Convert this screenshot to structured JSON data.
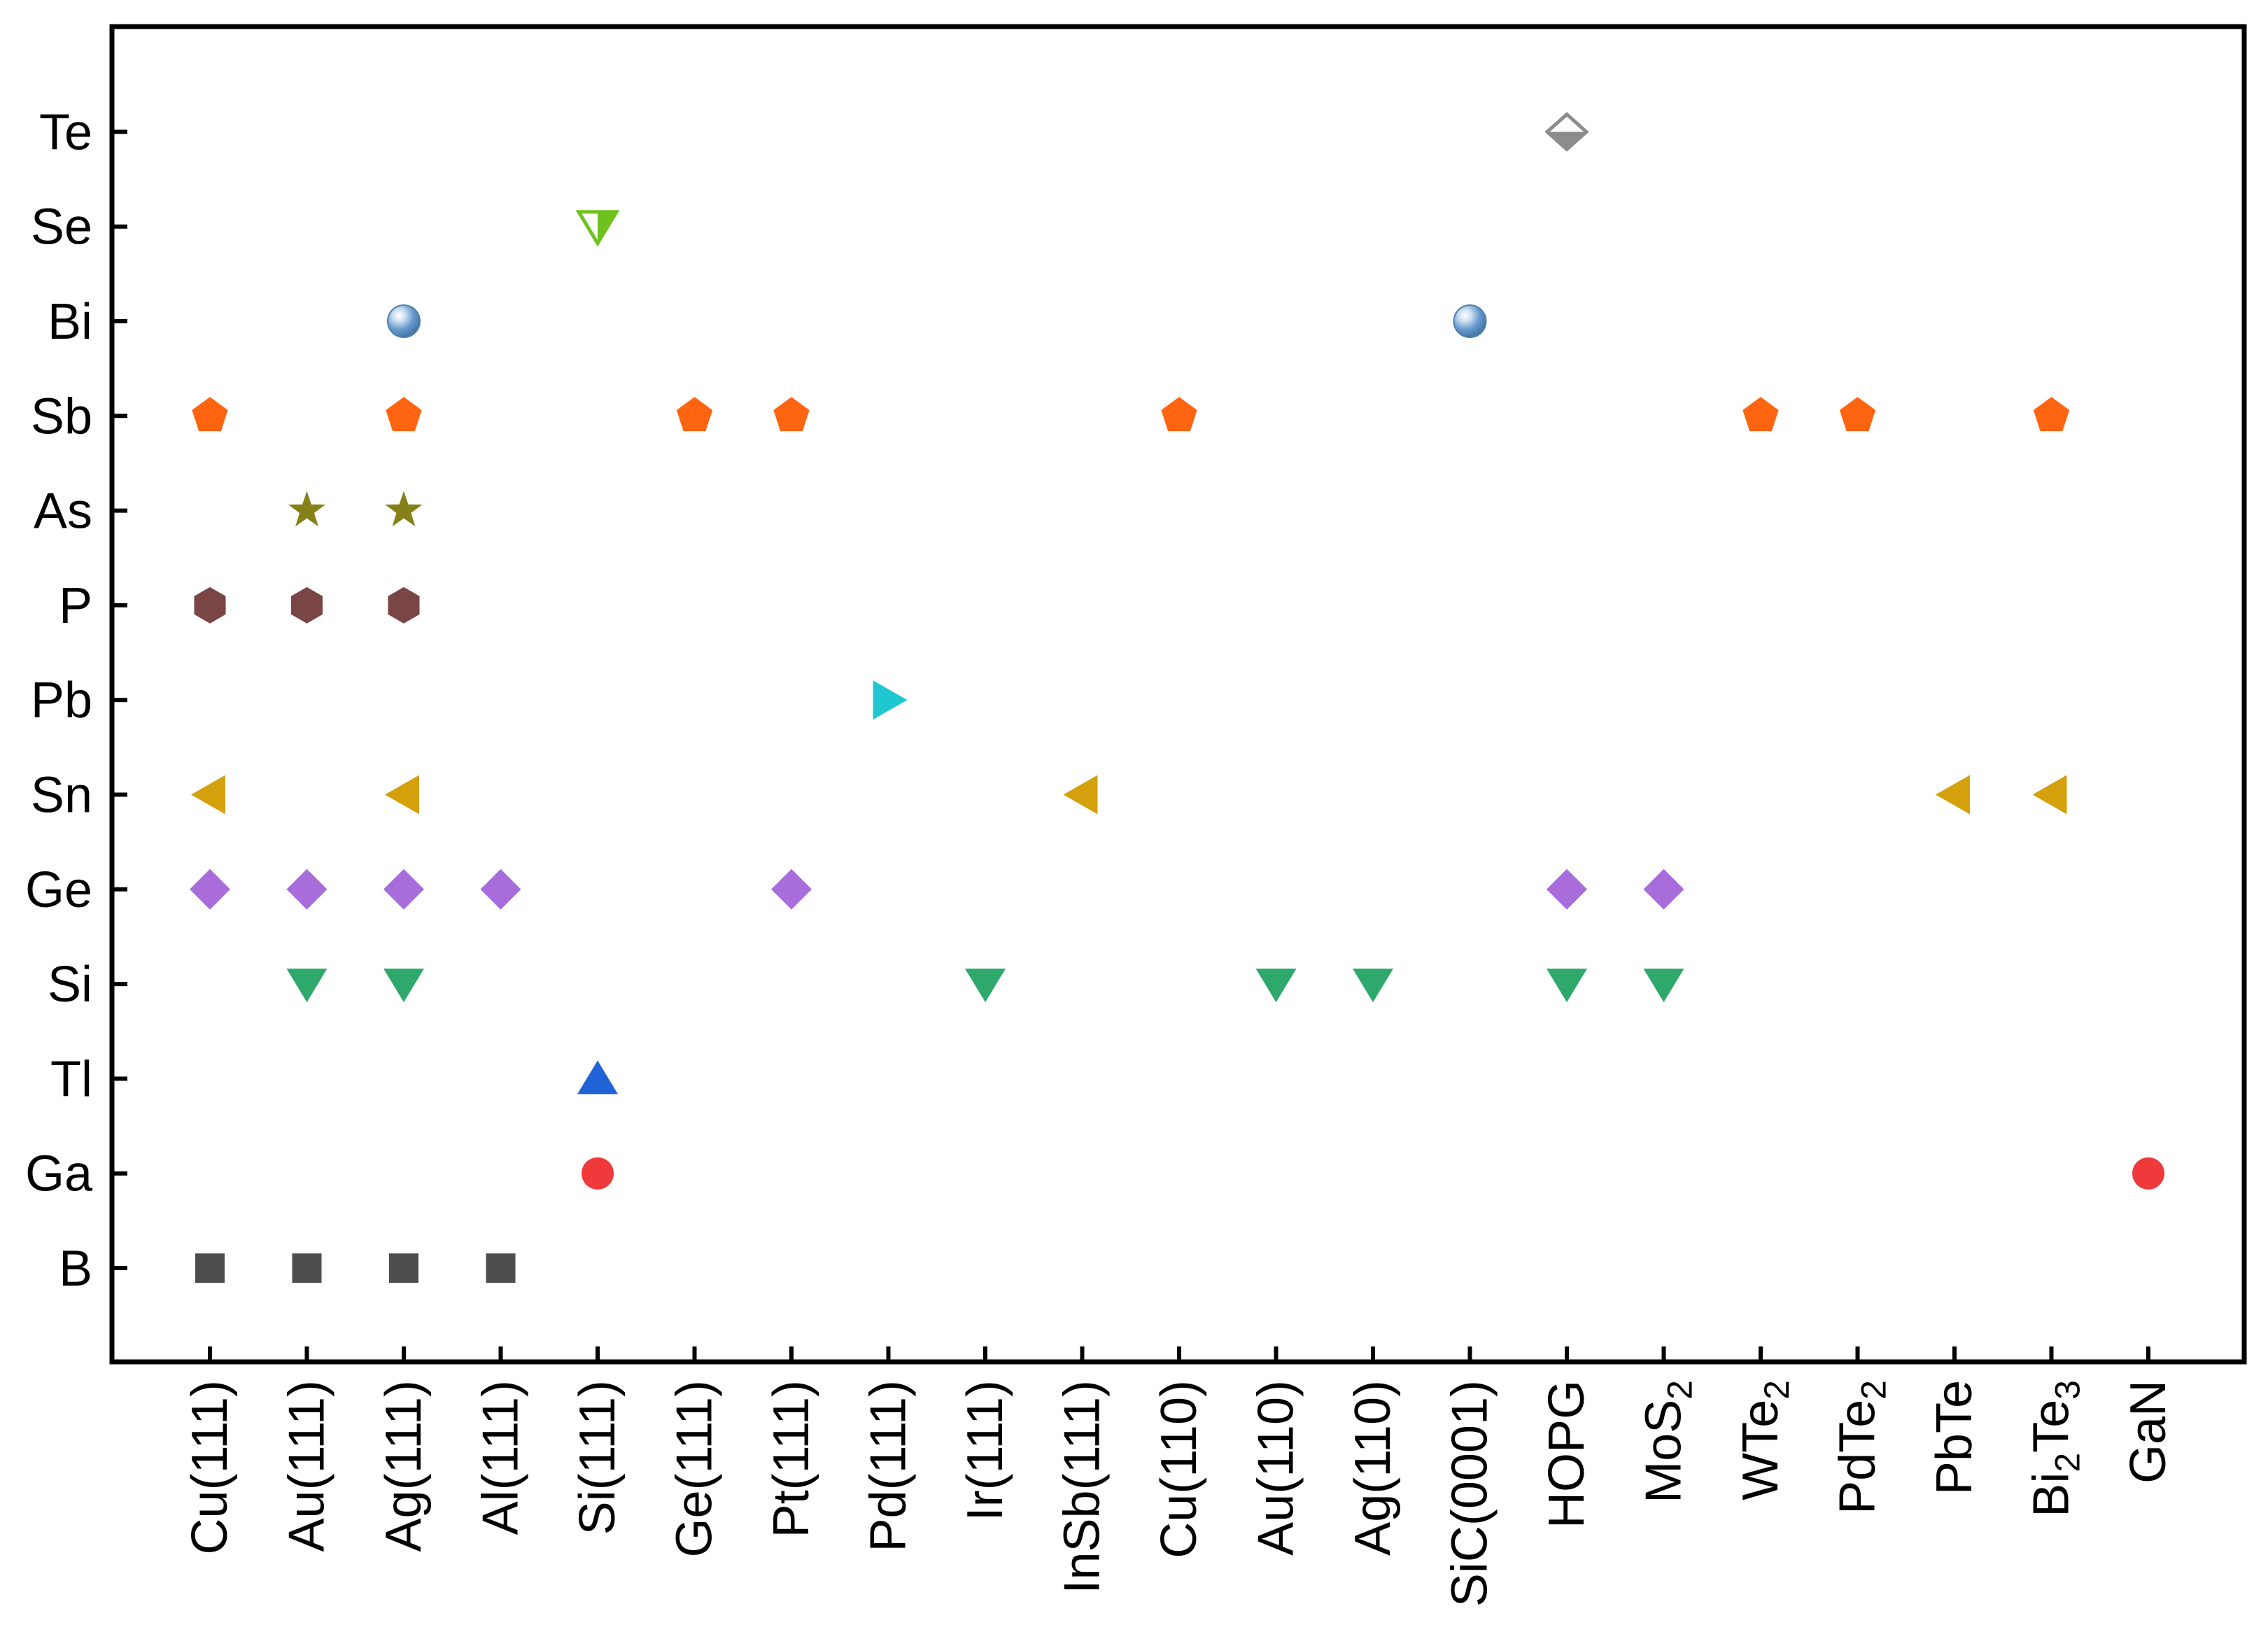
{
  "chart_data": {
    "type": "scatter",
    "title": "",
    "xlabel": "",
    "ylabel": "",
    "grid": false,
    "legend": "none",
    "x_categories": [
      {
        "label": "Cu(111)"
      },
      {
        "label": "Au(111)"
      },
      {
        "label": "Ag(111)"
      },
      {
        "label": "Al(111)"
      },
      {
        "label": "Si(111)"
      },
      {
        "label": "Ge(111)"
      },
      {
        "label": "Pt(111)"
      },
      {
        "label": "Pd(111)"
      },
      {
        "label": "Ir(111)"
      },
      {
        "label": "InSb(111)"
      },
      {
        "label": "Cu(110)"
      },
      {
        "label": "Au(110)"
      },
      {
        "label": "Ag(110)"
      },
      {
        "label": "SiC(0001)"
      },
      {
        "label": "HOPG"
      },
      {
        "label": "MoS",
        "sub": "2"
      },
      {
        "label": "WTe",
        "sub": "2"
      },
      {
        "label": "PdTe",
        "sub": "2"
      },
      {
        "label": "PbTe"
      },
      {
        "label": "Bi",
        "sub": "2",
        "label2": "Te",
        "sub2": "3"
      },
      {
        "label": "GaN"
      }
    ],
    "y_categories": [
      "B",
      "Ga",
      "Tl",
      "Si",
      "Ge",
      "Sn",
      "Pb",
      "P",
      "As",
      "Sb",
      "Bi",
      "Se",
      "Te"
    ],
    "series": [
      {
        "name": "B",
        "marker": "square",
        "color": "#4d4d4d",
        "x": [
          "Cu(111)",
          "Au(111)",
          "Ag(111)",
          "Al(111)"
        ]
      },
      {
        "name": "Ga",
        "marker": "circle",
        "color": "#f0393b",
        "x": [
          "Si(111)",
          "GaN"
        ]
      },
      {
        "name": "Tl",
        "marker": "triangle-up",
        "color": "#1f63d6",
        "x": [
          "Si(111)"
        ]
      },
      {
        "name": "Si",
        "marker": "triangle-down",
        "color": "#2ea86b",
        "x": [
          "Au(111)",
          "Ag(111)",
          "Ir(111)",
          "Au(110)",
          "Ag(110)",
          "HOPG",
          "MoS2"
        ]
      },
      {
        "name": "Ge",
        "marker": "diamond",
        "color": "#a86ddb",
        "x": [
          "Cu(111)",
          "Au(111)",
          "Ag(111)",
          "Al(111)",
          "Pt(111)",
          "HOPG",
          "MoS2"
        ]
      },
      {
        "name": "Sn",
        "marker": "triangle-left",
        "color": "#d4a00c",
        "x": [
          "Cu(111)",
          "Ag(111)",
          "InSb(111)",
          "PbTe",
          "Bi2Te3"
        ]
      },
      {
        "name": "Pb",
        "marker": "triangle-right",
        "color": "#1fc8d0",
        "x": [
          "Pd(111)"
        ]
      },
      {
        "name": "P",
        "marker": "hexagon",
        "color": "#7a4545",
        "x": [
          "Cu(111)",
          "Au(111)",
          "Ag(111)"
        ]
      },
      {
        "name": "As",
        "marker": "star",
        "color": "#858118",
        "x": [
          "Au(111)",
          "Ag(111)"
        ]
      },
      {
        "name": "Sb",
        "marker": "pentagon",
        "color": "#ff6410",
        "x": [
          "Cu(111)",
          "Ag(111)",
          "Ge(111)",
          "Pt(111)",
          "Cu(110)",
          "WTe2",
          "PdTe2",
          "Bi2Te3"
        ]
      },
      {
        "name": "Bi",
        "marker": "sphere",
        "color": "#6699cc",
        "x": [
          "Ag(111)",
          "SiC(0001)"
        ]
      },
      {
        "name": "Se",
        "marker": "triangle-down-half",
        "color": "#6ec21e",
        "x": [
          "Si(111)"
        ]
      },
      {
        "name": "Te",
        "marker": "diamond-half",
        "color": "#8c8c8c",
        "x": [
          "HOPG"
        ]
      }
    ]
  }
}
